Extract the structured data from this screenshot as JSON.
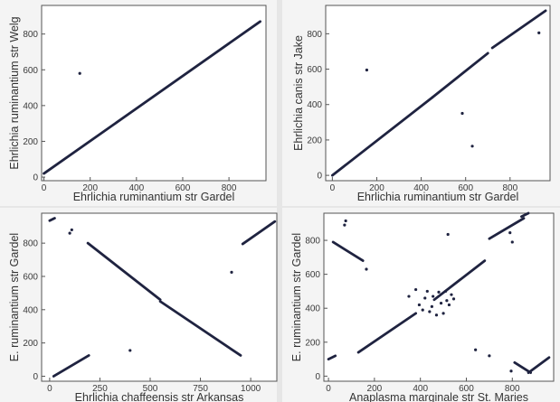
{
  "colors": {
    "points": "#1f2340",
    "frame": "#555555",
    "panel_bg": "#f4f4f4",
    "gap": "#e6e6e6"
  },
  "chart_data": [
    {
      "type": "scatter",
      "xlabel": "Ehrlichia ruminantium str Gardel",
      "ylabel": "Ehrlichia ruminantium str Welg",
      "xlim": [
        -10,
        960
      ],
      "ylim": [
        -20,
        960
      ],
      "xticks": [
        0,
        200,
        400,
        600,
        800
      ],
      "yticks": [
        0,
        200,
        400,
        600,
        800
      ],
      "segments": [
        {
          "x": [
            0,
            935
          ],
          "y": [
            20,
            870
          ]
        }
      ],
      "points": [
        {
          "x": 155,
          "y": 580
        }
      ]
    },
    {
      "type": "scatter",
      "xlabel": "Ehrlichia ruminantium str Gardel",
      "ylabel": "Ehrlichia canis str Jake",
      "xlim": [
        -30,
        980
      ],
      "ylim": [
        -30,
        960
      ],
      "xticks": [
        0,
        200,
        400,
        600,
        800
      ],
      "yticks": [
        0,
        200,
        400,
        600,
        800
      ],
      "segments": [
        {
          "x": [
            0,
            450
          ],
          "y": [
            0,
            440
          ]
        },
        {
          "x": [
            450,
            700
          ],
          "y": [
            440,
            690
          ]
        },
        {
          "x": [
            720,
            960
          ],
          "y": [
            720,
            930
          ]
        }
      ],
      "points": [
        {
          "x": 155,
          "y": 595
        },
        {
          "x": 585,
          "y": 350
        },
        {
          "x": 630,
          "y": 165
        },
        {
          "x": 930,
          "y": 805
        }
      ]
    },
    {
      "type": "scatter",
      "xlabel": "Ehrlichia chaffeensis str Arkansas",
      "ylabel": "E. ruminantium str Gardel",
      "xlim": [
        -40,
        1130
      ],
      "ylim": [
        -30,
        980
      ],
      "xticks": [
        0,
        250,
        500,
        750,
        1000
      ],
      "yticks": [
        0,
        200,
        400,
        600,
        800
      ],
      "segments": [
        {
          "x": [
            0,
            25
          ],
          "y": [
            935,
            950
          ]
        },
        {
          "x": [
            20,
            195
          ],
          "y": [
            0,
            125
          ]
        },
        {
          "x": [
            190,
            550
          ],
          "y": [
            800,
            460
          ]
        },
        {
          "x": [
            550,
            950
          ],
          "y": [
            450,
            125
          ]
        },
        {
          "x": [
            960,
            1120
          ],
          "y": [
            795,
            930
          ]
        }
      ],
      "points": [
        {
          "x": 100,
          "y": 860
        },
        {
          "x": 110,
          "y": 880
        },
        {
          "x": 400,
          "y": 155
        },
        {
          "x": 905,
          "y": 625
        }
      ]
    },
    {
      "type": "scatter",
      "xlabel": "Anaplasma marginale str St. Maries",
      "ylabel": "E. ruminantium str Gardel",
      "xlim": [
        -20,
        980
      ],
      "ylim": [
        -30,
        960
      ],
      "xticks": [
        0,
        200,
        400,
        600,
        800
      ],
      "yticks": [
        0,
        200,
        400,
        600,
        800
      ],
      "segments": [
        {
          "x": [
            0,
            30
          ],
          "y": [
            100,
            120
          ]
        },
        {
          "x": [
            20,
            150
          ],
          "y": [
            790,
            680
          ]
        },
        {
          "x": [
            130,
            380
          ],
          "y": [
            140,
            370
          ]
        },
        {
          "x": [
            460,
            680
          ],
          "y": [
            450,
            680
          ]
        },
        {
          "x": [
            700,
            850
          ],
          "y": [
            810,
            930
          ]
        },
        {
          "x": [
            840,
            870
          ],
          "y": [
            940,
            960
          ]
        },
        {
          "x": [
            810,
            880
          ],
          "y": [
            80,
            20
          ]
        },
        {
          "x": [
            870,
            960
          ],
          "y": [
            20,
            110
          ]
        }
      ],
      "points": [
        {
          "x": 70,
          "y": 890
        },
        {
          "x": 75,
          "y": 915
        },
        {
          "x": 165,
          "y": 630
        },
        {
          "x": 350,
          "y": 470
        },
        {
          "x": 380,
          "y": 510
        },
        {
          "x": 395,
          "y": 420
        },
        {
          "x": 410,
          "y": 390
        },
        {
          "x": 420,
          "y": 460
        },
        {
          "x": 430,
          "y": 500
        },
        {
          "x": 440,
          "y": 380
        },
        {
          "x": 450,
          "y": 410
        },
        {
          "x": 455,
          "y": 470
        },
        {
          "x": 470,
          "y": 360
        },
        {
          "x": 480,
          "y": 495
        },
        {
          "x": 490,
          "y": 430
        },
        {
          "x": 500,
          "y": 370
        },
        {
          "x": 510,
          "y": 500
        },
        {
          "x": 515,
          "y": 445
        },
        {
          "x": 525,
          "y": 420
        },
        {
          "x": 535,
          "y": 480
        },
        {
          "x": 545,
          "y": 455
        },
        {
          "x": 520,
          "y": 835
        },
        {
          "x": 640,
          "y": 155
        },
        {
          "x": 700,
          "y": 120
        },
        {
          "x": 790,
          "y": 845
        },
        {
          "x": 800,
          "y": 790
        },
        {
          "x": 795,
          "y": 30
        }
      ]
    }
  ]
}
